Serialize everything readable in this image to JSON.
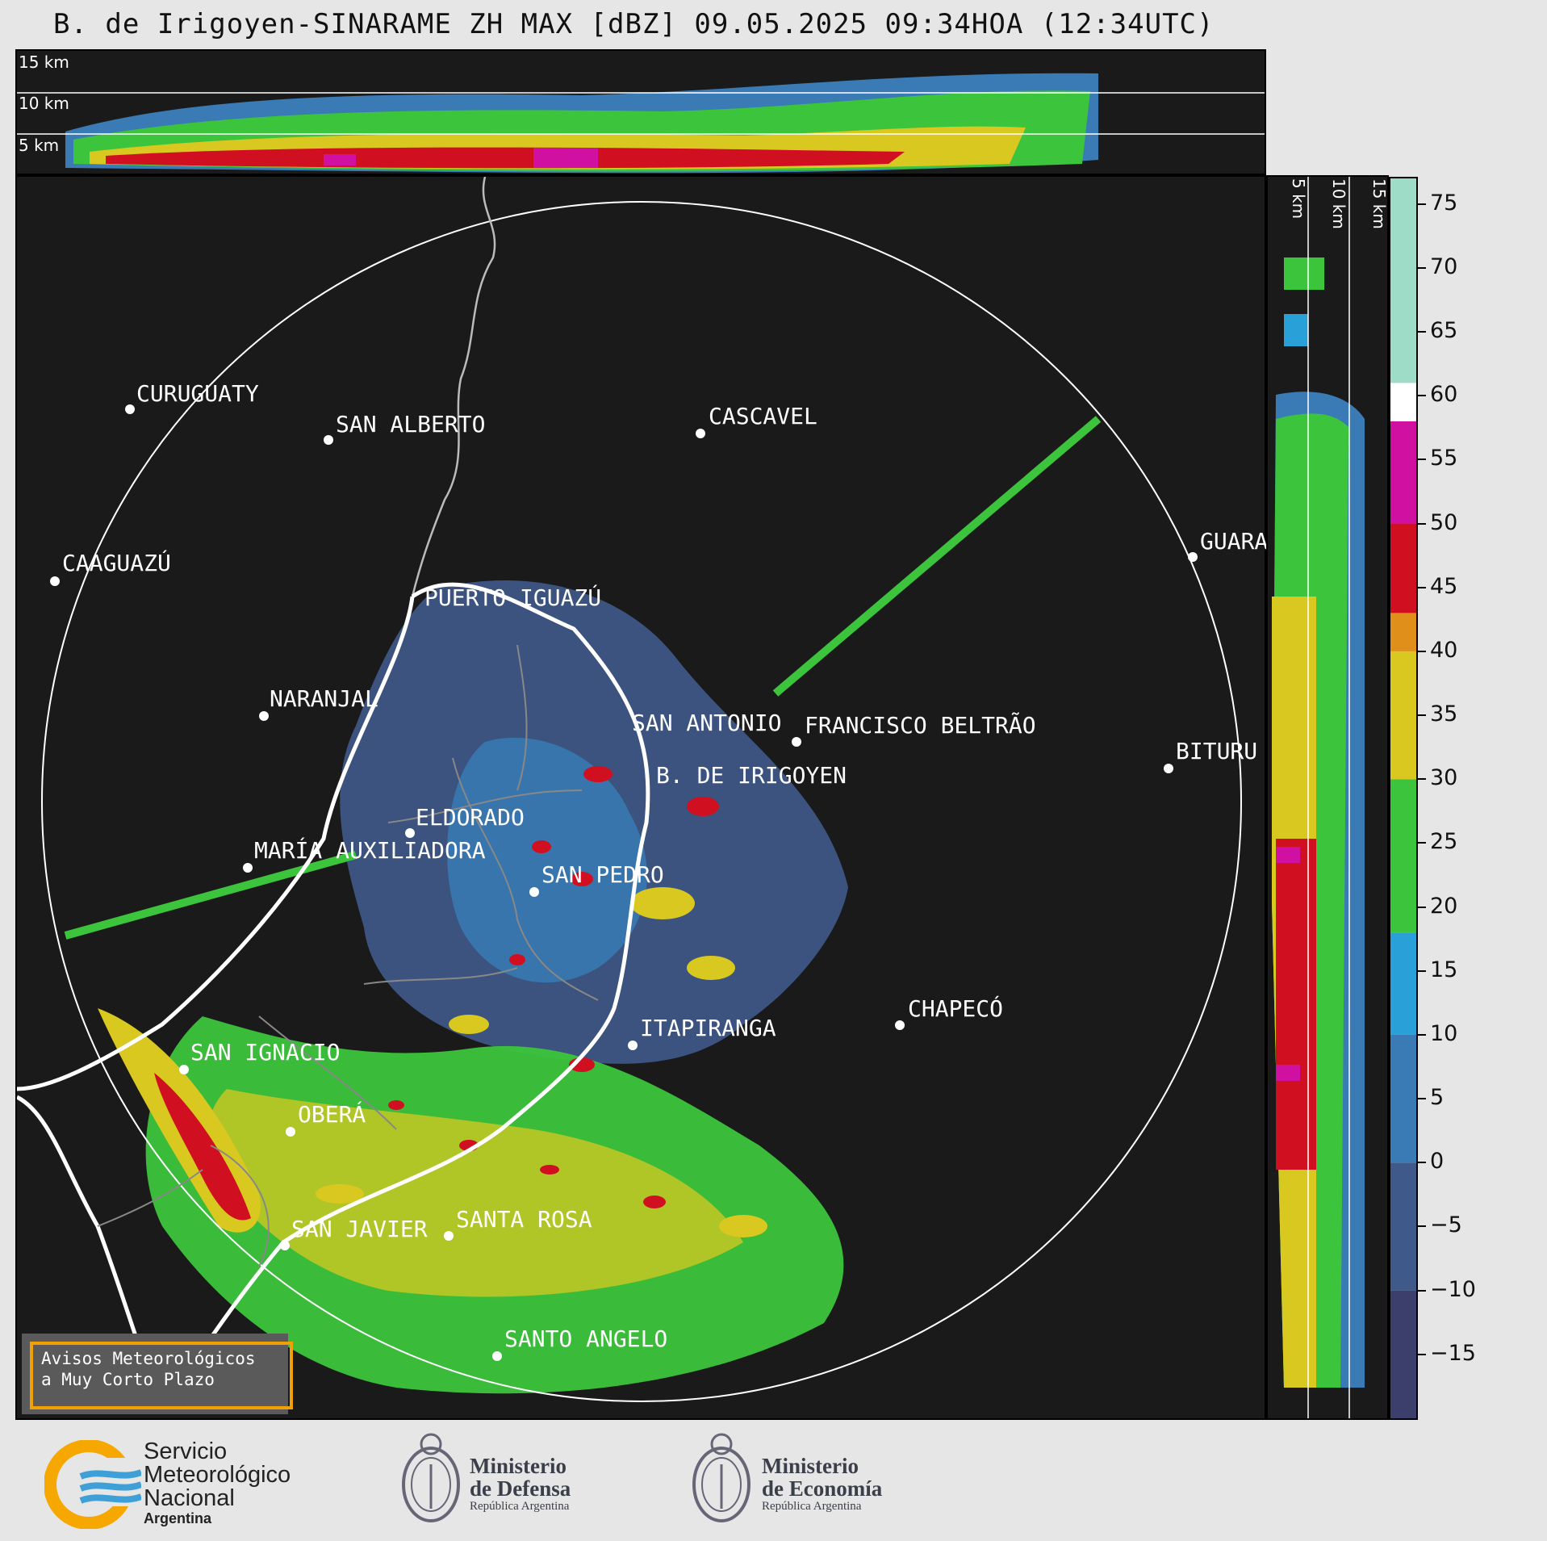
{
  "title": "B. de Irigoyen-SINARAME ZH MAX [dBZ] 09.05.2025 09:34HOA (12:34UTC)",
  "top_panel": {
    "altitudes": [
      "15 km",
      "10 km",
      "5 km"
    ]
  },
  "side_panel": {
    "altitudes": [
      "5 km",
      "10 km",
      "15 km"
    ]
  },
  "colorbar": {
    "unit": "dBZ",
    "ticks": [
      "75",
      "70",
      "65",
      "60",
      "55",
      "50",
      "45",
      "40",
      "35",
      "30",
      "25",
      "20",
      "15",
      "10",
      "5",
      "0",
      "−5",
      "−10",
      "−15"
    ],
    "bands": [
      {
        "from": -20,
        "to": -10,
        "color": "#3c3f6b"
      },
      {
        "from": -10,
        "to": 0,
        "color": "#3f5a8a"
      },
      {
        "from": 0,
        "to": 10,
        "color": "#3a7bb5"
      },
      {
        "from": 10,
        "to": 18,
        "color": "#2aa0d8"
      },
      {
        "from": 18,
        "to": 30,
        "color": "#3cc43c"
      },
      {
        "from": 30,
        "to": 40,
        "color": "#d8c820"
      },
      {
        "from": 40,
        "to": 43,
        "color": "#e0901a"
      },
      {
        "from": 43,
        "to": 50,
        "color": "#d01020"
      },
      {
        "from": 50,
        "to": 58,
        "color": "#d010a0"
      },
      {
        "from": 58,
        "to": 61,
        "color": "#ffffff"
      },
      {
        "from": 61,
        "to": 77,
        "color": "#9fdcc8"
      }
    ]
  },
  "cities": [
    {
      "name": "CURUGUATY"
    },
    {
      "name": "SAN ALBERTO"
    },
    {
      "name": "CASCAVEL"
    },
    {
      "name": "CAAGUAZÚ"
    },
    {
      "name": "GUARA"
    },
    {
      "name": "PUERTO IGUAZÚ"
    },
    {
      "name": "NARANJAL"
    },
    {
      "name": "SAN ANTONIO"
    },
    {
      "name": "FRANCISCO BELTRÃO"
    },
    {
      "name": "BITURU"
    },
    {
      "name": "B. DE IRIGOYEN"
    },
    {
      "name": "ELDORADO"
    },
    {
      "name": "MARÍA AUXILIADORA"
    },
    {
      "name": "SAN PEDRO"
    },
    {
      "name": "CHAPECÓ"
    },
    {
      "name": "ITAPIRANGA"
    },
    {
      "name": "SAN IGNACIO"
    },
    {
      "name": "OBERÁ"
    },
    {
      "name": "SAN JAVIER"
    },
    {
      "name": "SANTA ROSA"
    },
    {
      "name": "SANTO ANGELO"
    }
  ],
  "notice": {
    "line1": "Avisos Meteorológicos",
    "line2": "a Muy Corto Plazo"
  },
  "logos": {
    "smn": {
      "line1": "Servicio",
      "line2": "Meteorológico",
      "line3": "Nacional",
      "line4": "Argentina"
    },
    "defensa": {
      "line1": "Ministerio",
      "line2": "de Defensa",
      "line3": "República Argentina"
    },
    "economia": {
      "line1": "Ministerio",
      "line2": "de Economía",
      "line3": "República Argentina"
    }
  }
}
